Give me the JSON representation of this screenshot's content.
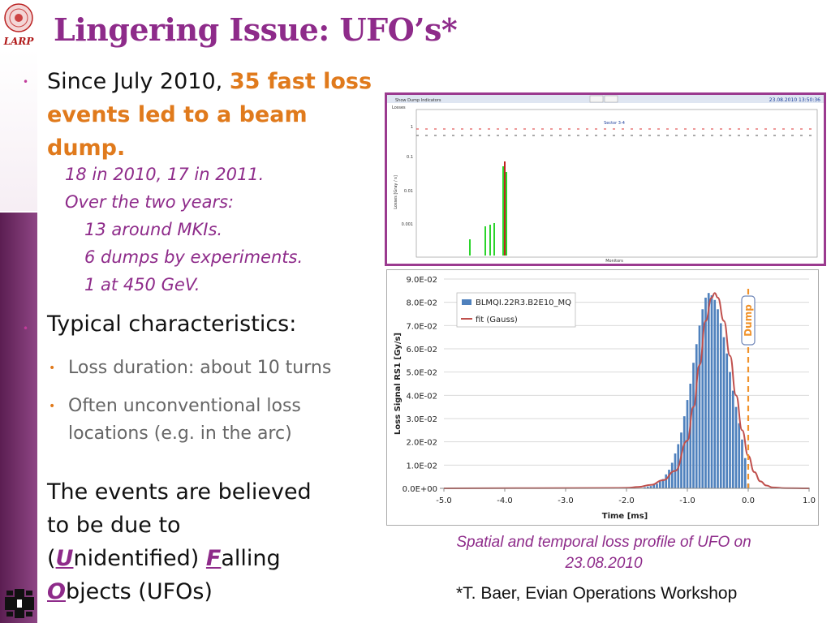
{
  "header": {
    "title": "Lingering Issue: UFO’s*",
    "logo_text": "LARP"
  },
  "intro": {
    "lead": "Since July 2010, ",
    "highlight": "35 fast loss events led to a beam dump.",
    "details": [
      "18 in 2010, 17 in 2011.",
      "Over the two years:",
      "13 around MKIs.",
      "6 dumps by experiments.",
      "1 at 450 GeV."
    ]
  },
  "characteristics": {
    "heading": "Typical characteristics:",
    "items": [
      "Loss duration: about 10 turns",
      "Often unconventional loss",
      "locations (e.g. in the arc)"
    ]
  },
  "events": {
    "line1": "The events are believed",
    "line2": "to be due to",
    "open_paren": "(",
    "u_letter": "U",
    "u_rest": "nidentified) ",
    "f_letter": "F",
    "f_rest": "alling",
    "o_letter": "O",
    "o_rest": "bjects (UFOs)"
  },
  "screenshot_panel": {
    "window_title": "Show Dump Indicators",
    "timestamp": "23.08.2010 13:50:36",
    "tab": "Losses",
    "sector_label": "Sector 3-4",
    "y_axis_label": "Losses [Gray / s]",
    "x_axis_label": "Monitors",
    "y_ticks": [
      "1",
      "0.1",
      "0.01",
      "0.001"
    ]
  },
  "caption": "Spatial and temporal loss profile of UFO on 23.08.2010",
  "reference": "*T. Baer, Evian Operations Workshop",
  "colors": {
    "title": "#8e2b8a",
    "highlight": "#e07a1c",
    "bars": "#4f81bd",
    "fit": "#c0504d",
    "dump_line": "#f0922b"
  },
  "chart_data": {
    "type": "bar",
    "title": "",
    "xlabel": "Time [ms]",
    "ylabel": "Loss Signal RS1 [Gy/s]",
    "xlim": [
      -5.0,
      1.0
    ],
    "ylim": [
      0,
      0.09
    ],
    "x_ticks": [
      "-5.0",
      "-4.0",
      "-3.0",
      "-2.0",
      "-1.0",
      "0.0",
      "1.0"
    ],
    "y_ticks": [
      "0.0E+00",
      "1.0E-02",
      "2.0E-02",
      "3.0E-02",
      "4.0E-02",
      "5.0E-02",
      "6.0E-02",
      "7.0E-02",
      "8.0E-02",
      "9.0E-02"
    ],
    "legend_position": "top-left",
    "series": [
      {
        "name": "BLMQI.22R3.B2E10_MQ",
        "kind": "bar",
        "x": [
          -1.7,
          -1.65,
          -1.6,
          -1.55,
          -1.5,
          -1.45,
          -1.4,
          -1.35,
          -1.3,
          -1.25,
          -1.2,
          -1.15,
          -1.1,
          -1.05,
          -1.0,
          -0.95,
          -0.9,
          -0.85,
          -0.8,
          -0.75,
          -0.7,
          -0.65,
          -0.6,
          -0.55,
          -0.5,
          -0.45,
          -0.4,
          -0.35,
          -0.3,
          -0.25,
          -0.2,
          -0.15,
          -0.1,
          -0.05,
          0.0
        ],
        "values": [
          0.0005,
          0.0008,
          0.001,
          0.0015,
          0.002,
          0.003,
          0.004,
          0.006,
          0.008,
          0.011,
          0.015,
          0.019,
          0.024,
          0.031,
          0.038,
          0.045,
          0.054,
          0.062,
          0.07,
          0.077,
          0.082,
          0.084,
          0.083,
          0.081,
          0.077,
          0.071,
          0.065,
          0.058,
          0.05,
          0.042,
          0.035,
          0.028,
          0.021,
          0.013,
          0.002
        ]
      },
      {
        "name": "fit (Gauss)",
        "kind": "line",
        "x": [
          -5.0,
          -2.0,
          -1.8,
          -1.6,
          -1.4,
          -1.2,
          -1.0,
          -0.9,
          -0.8,
          -0.7,
          -0.6,
          -0.55,
          -0.5,
          -0.4,
          -0.3,
          -0.2,
          -0.1,
          0.0,
          0.1,
          0.2,
          0.3,
          0.4,
          0.6,
          1.0
        ],
        "values": [
          0.0,
          0.0002,
          0.0006,
          0.0015,
          0.0035,
          0.0075,
          0.0205,
          0.035,
          0.053,
          0.072,
          0.082,
          0.084,
          0.082,
          0.072,
          0.057,
          0.04,
          0.025,
          0.014,
          0.007,
          0.003,
          0.0012,
          0.0004,
          0.0001,
          0.0
        ]
      }
    ],
    "annotations": [
      {
        "text": "Dump",
        "x": 0.0
      }
    ]
  }
}
